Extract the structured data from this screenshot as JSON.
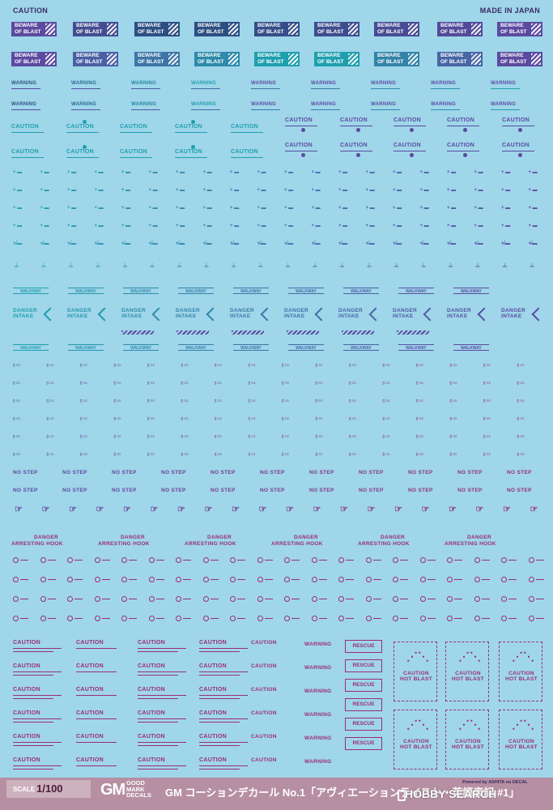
{
  "header": {
    "left_title": "CAUTION",
    "right_title": "MADE IN JAPAN"
  },
  "decal_texts": {
    "beware": "BEWARE OF BLAST",
    "warning": "WARNING",
    "caution": "CAUTION",
    "walkway": "WALKWAY",
    "danger_intake": "DANGER INTAKE",
    "no_step": "NO STEP",
    "danger": "DANGER",
    "arresting_hook": "ARRESTING HOOK",
    "rescue": "RESCUE",
    "caution_hot_blast": "CAUTION HOT BLAST"
  },
  "colors": {
    "background": "#9fd6ea",
    "teal": "#1f9fae",
    "purple": "#5b4aa0",
    "magenta": "#9b2d78",
    "navy": "#2c4f82"
  },
  "footer": {
    "scale_label": "SCALE",
    "scale_value": "1/100",
    "logo": "GM",
    "logo_lines": [
      "GOOD",
      "MARK",
      "DECALS"
    ],
    "product_name": "GM コーションデカール No.1「アヴィエーションテイスト・英語表記 #1」",
    "powered_by": "Powered by ASHITA no DECAL",
    "watermark": "HOBBY SEARCH"
  }
}
